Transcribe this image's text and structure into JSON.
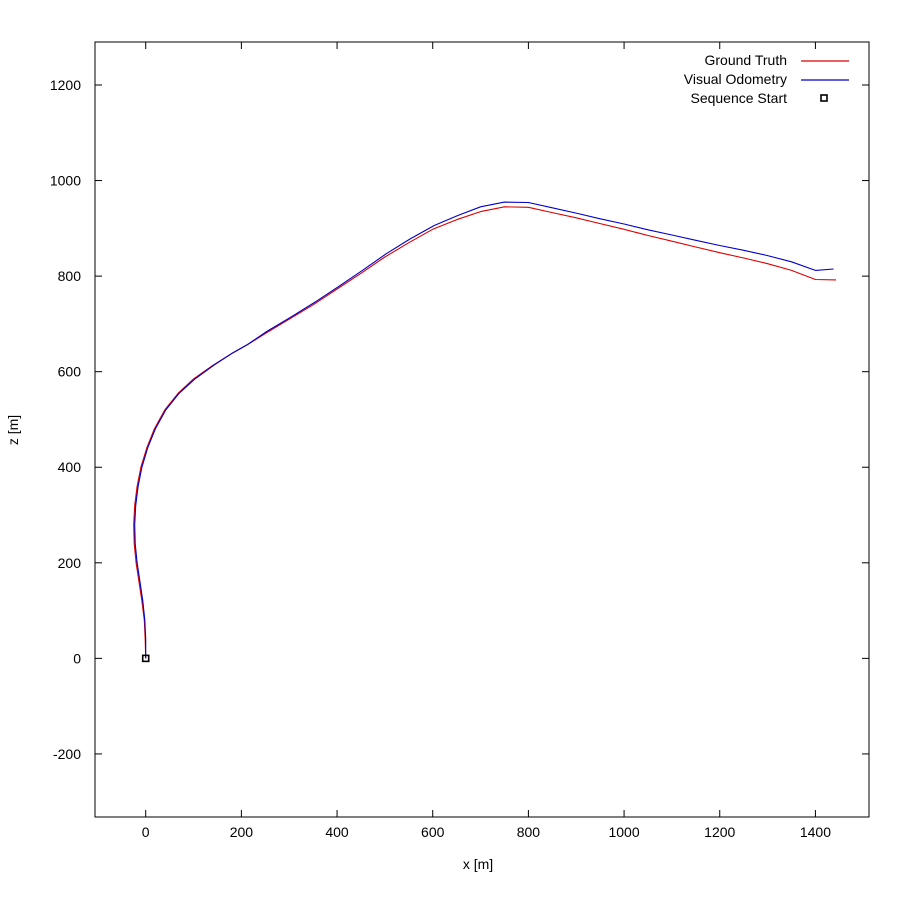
{
  "chart_data": {
    "type": "line",
    "xlabel": "x [m]",
    "ylabel": "z [m]",
    "xlim": [
      -106,
      1512
    ],
    "ylim": [
      -332,
      1290
    ],
    "xticks": [
      0,
      200,
      400,
      600,
      800,
      1000,
      1200,
      1400
    ],
    "yticks": [
      -200,
      0,
      200,
      400,
      600,
      800,
      1000,
      1200
    ],
    "grid": false,
    "legend_position": "top-right",
    "series": [
      {
        "name": "Ground Truth",
        "color": "#dd0000",
        "points": [
          [
            0,
            0
          ],
          [
            -1,
            40
          ],
          [
            -3,
            80
          ],
          [
            -8,
            120
          ],
          [
            -14,
            160
          ],
          [
            -20,
            200
          ],
          [
            -24,
            240
          ],
          [
            -25,
            280
          ],
          [
            -23,
            320
          ],
          [
            -18,
            360
          ],
          [
            -10,
            400
          ],
          [
            2,
            440
          ],
          [
            18,
            480
          ],
          [
            40,
            520
          ],
          [
            68,
            555
          ],
          [
            100,
            585
          ],
          [
            140,
            613
          ],
          [
            180,
            638
          ],
          [
            210,
            655
          ],
          [
            250,
            680
          ],
          [
            300,
            710
          ],
          [
            350,
            740
          ],
          [
            400,
            773
          ],
          [
            450,
            806
          ],
          [
            500,
            840
          ],
          [
            550,
            870
          ],
          [
            600,
            898
          ],
          [
            650,
            918
          ],
          [
            700,
            935
          ],
          [
            750,
            945
          ],
          [
            800,
            944
          ],
          [
            850,
            933
          ],
          [
            900,
            922
          ],
          [
            950,
            910
          ],
          [
            1000,
            898
          ],
          [
            1050,
            885
          ],
          [
            1100,
            873
          ],
          [
            1150,
            861
          ],
          [
            1200,
            849
          ],
          [
            1250,
            838
          ],
          [
            1300,
            826
          ],
          [
            1350,
            812
          ],
          [
            1400,
            793
          ],
          [
            1443,
            792
          ]
        ]
      },
      {
        "name": "Visual Odometry",
        "color": "#0000cc",
        "points": [
          [
            0,
            0
          ],
          [
            0,
            40
          ],
          [
            -2,
            80
          ],
          [
            -6,
            120
          ],
          [
            -12,
            160
          ],
          [
            -18,
            200
          ],
          [
            -22,
            240
          ],
          [
            -23,
            280
          ],
          [
            -21,
            320
          ],
          [
            -16,
            360
          ],
          [
            -8,
            400
          ],
          [
            4,
            440
          ],
          [
            20,
            480
          ],
          [
            42,
            520
          ],
          [
            70,
            555
          ],
          [
            103,
            585
          ],
          [
            143,
            614
          ],
          [
            183,
            640
          ],
          [
            213,
            657
          ],
          [
            253,
            684
          ],
          [
            303,
            714
          ],
          [
            353,
            745
          ],
          [
            403,
            778
          ],
          [
            453,
            812
          ],
          [
            503,
            847
          ],
          [
            553,
            878
          ],
          [
            603,
            906
          ],
          [
            653,
            927
          ],
          [
            700,
            945
          ],
          [
            750,
            955
          ],
          [
            800,
            954
          ],
          [
            850,
            943
          ],
          [
            900,
            932
          ],
          [
            950,
            920
          ],
          [
            1000,
            909
          ],
          [
            1050,
            897
          ],
          [
            1100,
            886
          ],
          [
            1150,
            875
          ],
          [
            1200,
            864
          ],
          [
            1250,
            854
          ],
          [
            1300,
            843
          ],
          [
            1350,
            830
          ],
          [
            1400,
            812
          ],
          [
            1438,
            815
          ]
        ]
      },
      {
        "name": "Sequence Start",
        "marker": "square",
        "color": "#000000",
        "points": [
          [
            0,
            0
          ]
        ]
      }
    ]
  }
}
